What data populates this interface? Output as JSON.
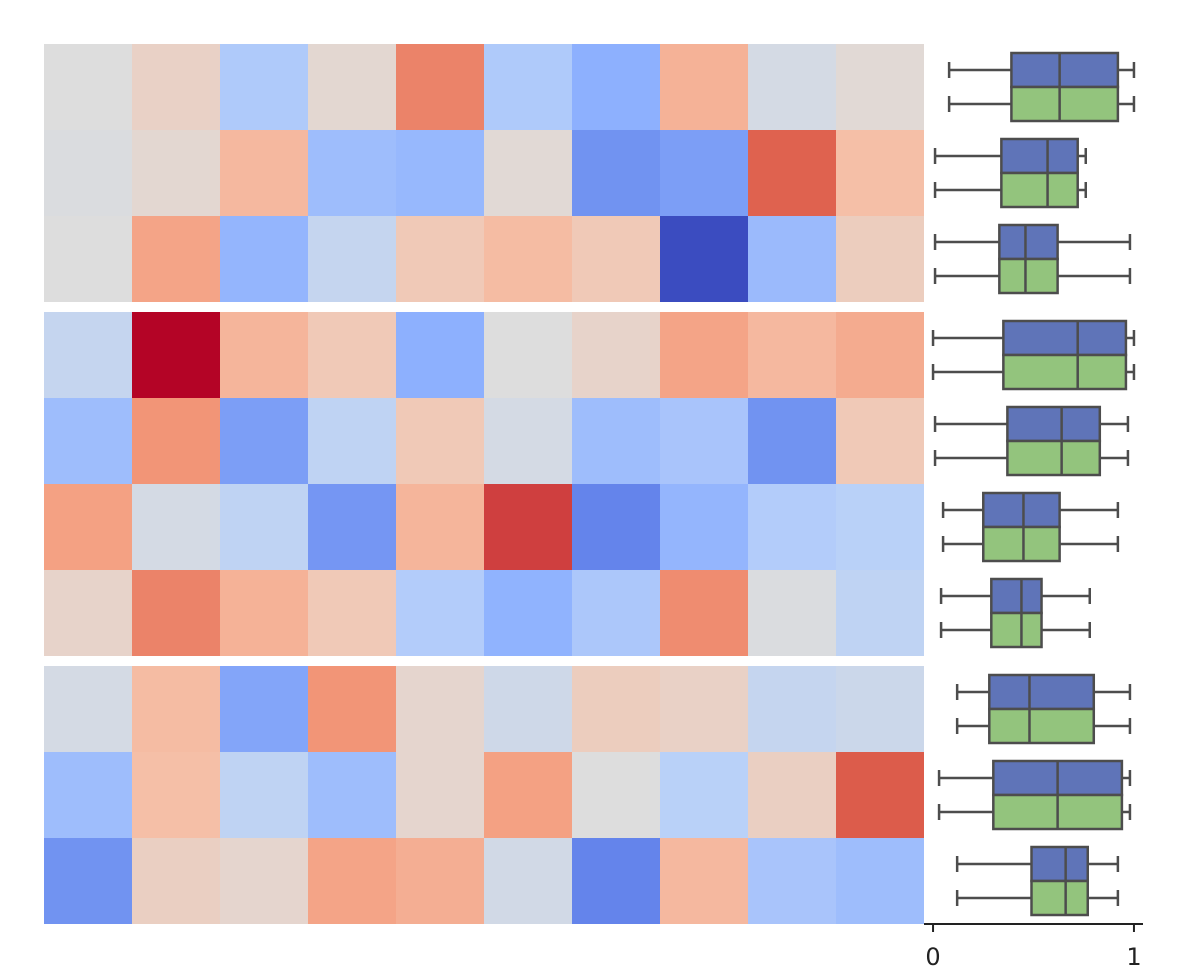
{
  "chart_data": {
    "type": "heatmap-boxplot",
    "heatmap": {
      "colormap": "coolwarm",
      "vlim": [
        0,
        1
      ],
      "row_groups": [
        3,
        4,
        3
      ],
      "values": [
        [
          0.5,
          0.56,
          0.35,
          0.53,
          0.8,
          0.35,
          0.25,
          0.68,
          0.47,
          0.52
        ],
        [
          0.49,
          0.53,
          0.66,
          0.3,
          0.28,
          0.52,
          0.17,
          0.2,
          0.87,
          0.64
        ],
        [
          0.5,
          0.72,
          0.27,
          0.42,
          0.6,
          0.65,
          0.6,
          0.0,
          0.29,
          0.58
        ],
        [
          0.42,
          1.0,
          0.67,
          0.6,
          0.25,
          0.5,
          0.55,
          0.72,
          0.66,
          0.7
        ],
        [
          0.3,
          0.76,
          0.2,
          0.4,
          0.6,
          0.47,
          0.3,
          0.33,
          0.17,
          0.6
        ],
        [
          0.73,
          0.47,
          0.4,
          0.18,
          0.67,
          0.92,
          0.13,
          0.27,
          0.36,
          0.38
        ],
        [
          0.55,
          0.8,
          0.68,
          0.6,
          0.36,
          0.26,
          0.34,
          0.78,
          0.49,
          0.4
        ],
        [
          0.47,
          0.65,
          0.22,
          0.76,
          0.54,
          0.45,
          0.58,
          0.56,
          0.42,
          0.44
        ],
        [
          0.3,
          0.64,
          0.4,
          0.3,
          0.54,
          0.73,
          0.5,
          0.38,
          0.57,
          0.88
        ],
        [
          0.17,
          0.57,
          0.54,
          0.72,
          0.69,
          0.46,
          0.13,
          0.66,
          0.33,
          0.3
        ]
      ]
    },
    "boxplot": {
      "xlim": [
        -0.045,
        1.045
      ],
      "xticks": [
        0,
        1
      ],
      "series": [
        {
          "color": "#5f74b8",
          "boxes": [
            {
              "min": 0.08,
              "q1": 0.39,
              "median": 0.63,
              "q3": 0.92,
              "max": 1.0
            },
            {
              "min": 0.01,
              "q1": 0.34,
              "median": 0.57,
              "q3": 0.72,
              "max": 0.76
            },
            {
              "min": 0.01,
              "q1": 0.33,
              "median": 0.46,
              "q3": 0.62,
              "max": 0.98
            },
            {
              "min": 0.0,
              "q1": 0.35,
              "median": 0.72,
              "q3": 0.96,
              "max": 1.0
            },
            {
              "min": 0.01,
              "q1": 0.37,
              "median": 0.64,
              "q3": 0.83,
              "max": 0.97
            },
            {
              "min": 0.05,
              "q1": 0.25,
              "median": 0.45,
              "q3": 0.63,
              "max": 0.92
            },
            {
              "min": 0.04,
              "q1": 0.29,
              "median": 0.44,
              "q3": 0.54,
              "max": 0.78
            },
            {
              "min": 0.12,
              "q1": 0.28,
              "median": 0.48,
              "q3": 0.8,
              "max": 0.98
            },
            {
              "min": 0.03,
              "q1": 0.3,
              "median": 0.62,
              "q3": 0.94,
              "max": 0.98
            },
            {
              "min": 0.12,
              "q1": 0.49,
              "median": 0.66,
              "q3": 0.77,
              "max": 0.92
            }
          ]
        },
        {
          "color": "#93c47d",
          "boxes": [
            {
              "min": 0.08,
              "q1": 0.39,
              "median": 0.63,
              "q3": 0.92,
              "max": 1.0
            },
            {
              "min": 0.01,
              "q1": 0.34,
              "median": 0.57,
              "q3": 0.72,
              "max": 0.76
            },
            {
              "min": 0.01,
              "q1": 0.33,
              "median": 0.46,
              "q3": 0.62,
              "max": 0.98
            },
            {
              "min": 0.0,
              "q1": 0.35,
              "median": 0.72,
              "q3": 0.96,
              "max": 1.0
            },
            {
              "min": 0.01,
              "q1": 0.37,
              "median": 0.64,
              "q3": 0.83,
              "max": 0.97
            },
            {
              "min": 0.05,
              "q1": 0.25,
              "median": 0.45,
              "q3": 0.63,
              "max": 0.92
            },
            {
              "min": 0.04,
              "q1": 0.29,
              "median": 0.44,
              "q3": 0.54,
              "max": 0.78
            },
            {
              "min": 0.12,
              "q1": 0.28,
              "median": 0.48,
              "q3": 0.8,
              "max": 0.98
            },
            {
              "min": 0.03,
              "q1": 0.3,
              "median": 0.62,
              "q3": 0.94,
              "max": 0.98
            },
            {
              "min": 0.12,
              "q1": 0.49,
              "median": 0.66,
              "q3": 0.77,
              "max": 0.92
            }
          ]
        }
      ]
    }
  }
}
